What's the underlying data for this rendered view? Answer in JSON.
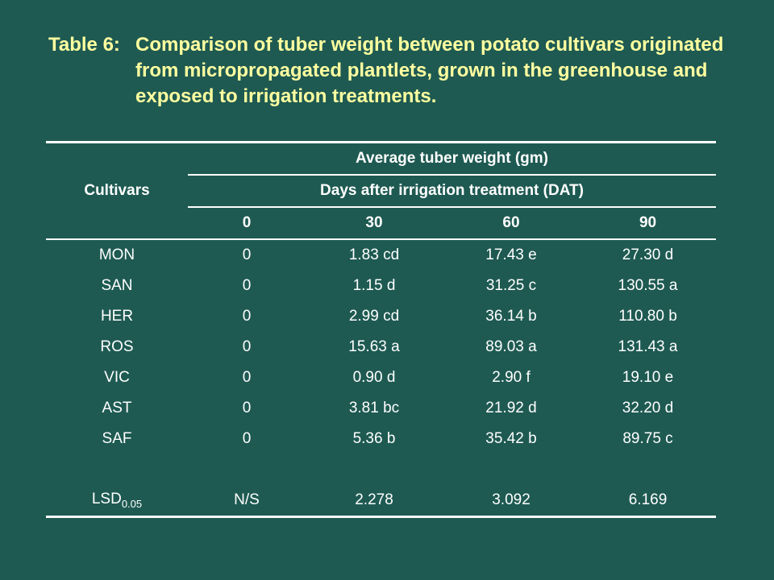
{
  "title": {
    "prefix": "Table 6:",
    "text": "Comparison of tuber weight between potato cultivars originated from micropropagated plantlets, grown in the greenhouse and exposed to irrigation treatments."
  },
  "table": {
    "cultivars_header": "Cultivars",
    "group_header": "Average tuber weight (gm)",
    "sub_header": "Days after irrigation treatment (DAT)",
    "columns": [
      "0",
      "30",
      "60",
      "90"
    ],
    "rows": [
      {
        "cultivar": "MON",
        "v0": "0",
        "v30": "1.83 cd",
        "v60": "17.43 e",
        "v90": "27.30 d"
      },
      {
        "cultivar": "SAN",
        "v0": "0",
        "v30": "1.15 d",
        "v60": "31.25 c",
        "v90": "130.55 a"
      },
      {
        "cultivar": "HER",
        "v0": "0",
        "v30": "2.99 cd",
        "v60": "36.14 b",
        "v90": "110.80 b"
      },
      {
        "cultivar": "ROS",
        "v0": "0",
        "v30": "15.63 a",
        "v60": "89.03 a",
        "v90": "131.43 a"
      },
      {
        "cultivar": "VIC",
        "v0": "0",
        "v30": "0.90 d",
        "v60": "2.90 f",
        "v90": "19.10 e"
      },
      {
        "cultivar": "AST",
        "v0": "0",
        "v30": "3.81 bc",
        "v60": "21.92 d",
        "v90": "32.20 d"
      },
      {
        "cultivar": "SAF",
        "v0": "0",
        "v30": "5.36 b",
        "v60": "35.42 b",
        "v90": "89.75 c"
      }
    ],
    "lsd": {
      "label": "LSD",
      "label_sub": "0.05",
      "v0": "N/S",
      "v30": "2.278",
      "v60": "3.092",
      "v90": "6.169"
    }
  },
  "colors": {
    "background": "#1e5a52",
    "title": "#ffffa0",
    "text": "#ffffff"
  }
}
